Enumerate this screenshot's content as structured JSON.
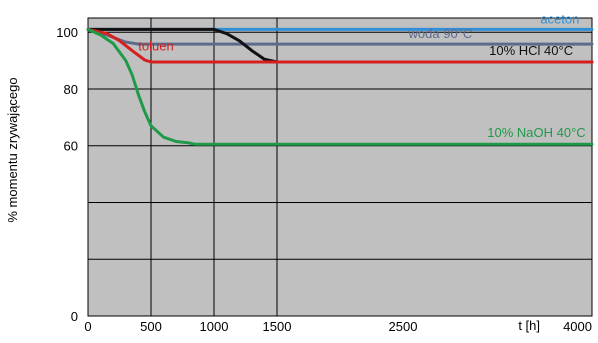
{
  "chart_data": {
    "type": "line",
    "title": "",
    "xlabel": "t [h]",
    "ylabel": "% momentu zrywającego",
    "xlim": [
      0,
      4000
    ],
    "ylim": [
      0,
      105
    ],
    "xticks": [
      0,
      500,
      1000,
      1500,
      2500,
      4000
    ],
    "yticks": [
      0,
      20,
      40,
      60,
      80,
      100
    ],
    "xtick_labels": [
      "0",
      "500",
      "1000",
      "1500",
      "2500",
      "4000"
    ],
    "ytick_labels": [
      "0",
      "",
      "",
      "60",
      "80",
      "100"
    ],
    "grid": true,
    "legend": "inline labels",
    "series": [
      {
        "name": "aceton",
        "color": "#2f8fd8",
        "x": [
          0,
          4000
        ],
        "y": [
          101,
          101
        ]
      },
      {
        "name": "woda 90°C",
        "color": "#5c6b8c",
        "x": [
          0,
          150,
          300,
          400,
          4000
        ],
        "y": [
          101,
          99,
          96.5,
          95.8,
          95.8
        ]
      },
      {
        "name": "10% HCl 40°C",
        "color": "#111111",
        "x": [
          0,
          1000,
          1100,
          1200,
          1300,
          1400,
          1500,
          4000
        ],
        "y": [
          101,
          101,
          99.5,
          97,
          93.5,
          90.5,
          89.5,
          89.5
        ]
      },
      {
        "name": "toluen",
        "color": "#d62020",
        "x": [
          0,
          150,
          250,
          350,
          450,
          500,
          4000
        ],
        "y": [
          101,
          99.5,
          97,
          93.5,
          90.2,
          89.5,
          89.5
        ]
      },
      {
        "name": "10% NaOH 40°C",
        "color": "#1f9a48",
        "x": [
          0,
          100,
          200,
          300,
          350,
          400,
          450,
          500,
          600,
          700,
          800,
          850,
          4000
        ],
        "y": [
          101,
          99,
          96,
          90,
          85,
          78,
          72,
          67,
          63,
          61.5,
          61,
          60.5,
          60.5
        ]
      }
    ],
    "annotations": [
      {
        "text": "aceton",
        "x": 3900,
        "y": 103,
        "anchor": "end",
        "series": 0
      },
      {
        "text": "woda 90°C",
        "x": 3050,
        "y": 98,
        "anchor": "end",
        "series": 1
      },
      {
        "text": "10% HCl 40°C",
        "x": 3850,
        "y": 92,
        "anchor": "end",
        "series": 2
      },
      {
        "text": "toluen",
        "x": 680,
        "y": 93.5,
        "anchor": "end",
        "series": 3
      },
      {
        "text": "10% NaOH 40°C",
        "x": 3950,
        "y": 63,
        "anchor": "end",
        "series": 4
      }
    ]
  }
}
